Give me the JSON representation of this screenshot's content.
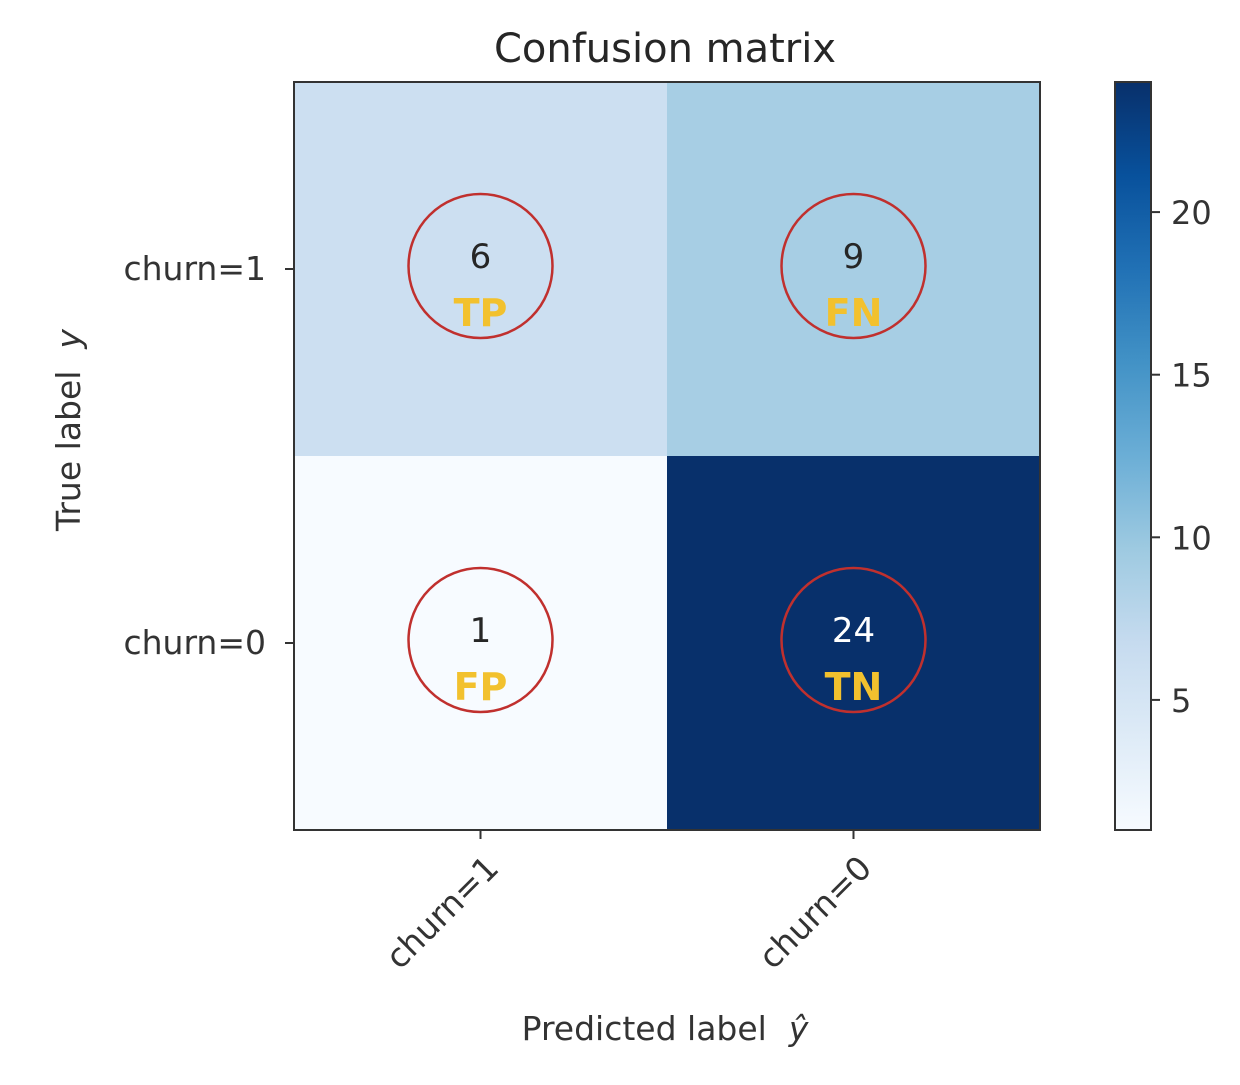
{
  "chart_data": {
    "type": "heatmap",
    "title": "Confusion matrix",
    "xlabel": "Predicted label",
    "xlabel_symbol": "ŷ",
    "ylabel": "True label",
    "ylabel_symbol": "y",
    "x_categories": [
      "churn=1",
      "churn=0"
    ],
    "y_categories": [
      "churn=1",
      "churn=0"
    ],
    "values": [
      [
        6,
        9
      ],
      [
        1,
        24
      ]
    ],
    "cell_annotations": [
      [
        "TP",
        "FN"
      ],
      [
        "FP",
        "TN"
      ]
    ],
    "annotation_color": "#f2c12e",
    "circle_color": "#c0302e",
    "colormap": "Blues",
    "colorbar": {
      "range": [
        1,
        24
      ],
      "ticks": [
        5,
        10,
        15,
        20
      ]
    },
    "grid": false,
    "x_tick_rotation": "45 degrees"
  }
}
